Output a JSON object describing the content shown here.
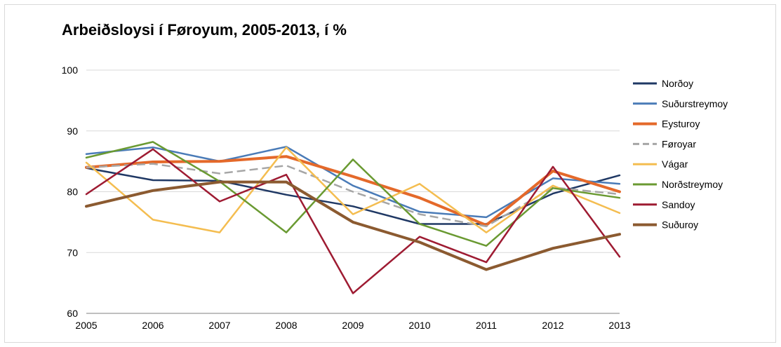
{
  "chart_data": {
    "type": "line",
    "title": "Arbeiðsloysi í Føroyum, 2005-2013, í %",
    "xlabel": "",
    "ylabel": "",
    "x": [
      "2005",
      "2006",
      "2007",
      "2008",
      "2009",
      "2010",
      "2011",
      "2012",
      "2013"
    ],
    "ylim": [
      60,
      100
    ],
    "yticks": [
      "60",
      "70",
      "80",
      "90",
      "100"
    ],
    "grid": "horizontal",
    "legend_position": "right",
    "series": [
      {
        "name": "Norðoy",
        "color": "#1f3864",
        "dash": "solid",
        "weight": "normal",
        "values": [
          83.9,
          81.9,
          81.8,
          79.5,
          77.6,
          74.7,
          74.7,
          79.7,
          82.7
        ]
      },
      {
        "name": "Suðurstreymoy",
        "color": "#4a7bb7",
        "dash": "solid",
        "weight": "normal",
        "values": [
          86.2,
          87.3,
          85.0,
          87.4,
          81.0,
          76.7,
          75.8,
          82.2,
          81.3
        ]
      },
      {
        "name": "Eysturoy",
        "color": "#e4692a",
        "dash": "solid",
        "weight": "bold",
        "values": [
          84.0,
          84.9,
          85.0,
          85.8,
          82.5,
          79.0,
          74.5,
          83.4,
          80.0
        ]
      },
      {
        "name": "Føroyar",
        "color": "#a6a6a6",
        "dash": "dashed",
        "weight": "normal",
        "values": [
          84.0,
          84.6,
          83.0,
          84.3,
          80.0,
          76.3,
          74.3,
          80.7,
          79.6
        ]
      },
      {
        "name": "Vágar",
        "color": "#f4bd50",
        "dash": "solid",
        "weight": "normal",
        "values": [
          84.8,
          75.4,
          73.3,
          87.3,
          76.3,
          81.3,
          73.3,
          81.0,
          76.5
        ]
      },
      {
        "name": "Norðstreymoy",
        "color": "#6a9a32",
        "dash": "solid",
        "weight": "normal",
        "values": [
          85.6,
          88.2,
          81.7,
          73.3,
          85.3,
          74.7,
          71.1,
          80.6,
          79.0
        ]
      },
      {
        "name": "Sandoy",
        "color": "#9e1b32",
        "dash": "solid",
        "weight": "normal",
        "values": [
          79.6,
          87.0,
          78.4,
          82.8,
          63.3,
          72.6,
          68.4,
          84.1,
          69.3
        ]
      },
      {
        "name": "Suðuroy",
        "color": "#8b5a30",
        "dash": "solid",
        "weight": "bold",
        "values": [
          77.6,
          80.2,
          81.6,
          81.6,
          75.0,
          71.7,
          67.2,
          70.7,
          73.0
        ]
      }
    ]
  }
}
